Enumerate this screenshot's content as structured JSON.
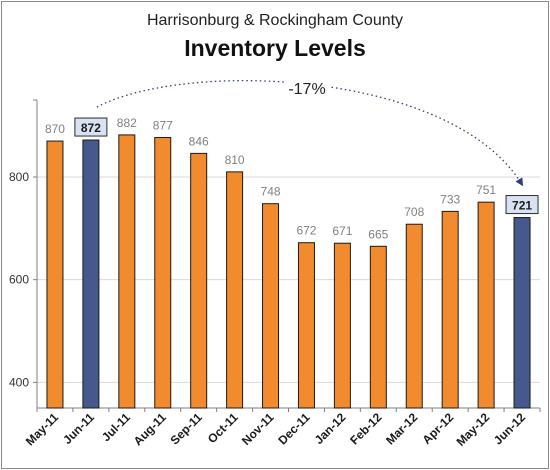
{
  "chart_data": {
    "type": "bar",
    "title": "Harrisonburg & Rockingham County",
    "subtitle": "Inventory Levels",
    "categories": [
      "May-11",
      "Jun-11",
      "Jul-11",
      "Aug-11",
      "Sep-11",
      "Oct-11",
      "Nov-11",
      "Dec-11",
      "Jan-12",
      "Feb-12",
      "Mar-12",
      "Apr-12",
      "May-12",
      "Jun-12"
    ],
    "values": [
      870,
      872,
      882,
      877,
      846,
      810,
      748,
      672,
      671,
      665,
      708,
      733,
      751,
      721
    ],
    "highlighted_categories": [
      "Jun-11",
      "Jun-12"
    ],
    "ylim": [
      350,
      950
    ],
    "yticks": [
      400,
      600,
      800
    ],
    "grid": "horizontal",
    "xlabel": "",
    "ylabel": "",
    "annotation": {
      "text": "-17%",
      "from_category": "Jun-11",
      "to_category": "Jun-12",
      "style": "dotted curved arrow"
    },
    "colors": {
      "bar": "#F28A2E",
      "highlight_bar": "#45598C",
      "label": "#808080",
      "highlight_label_bg": "#D9E2F2",
      "arrow": "#2B3F7A",
      "grid": "#D9D9D9"
    }
  }
}
